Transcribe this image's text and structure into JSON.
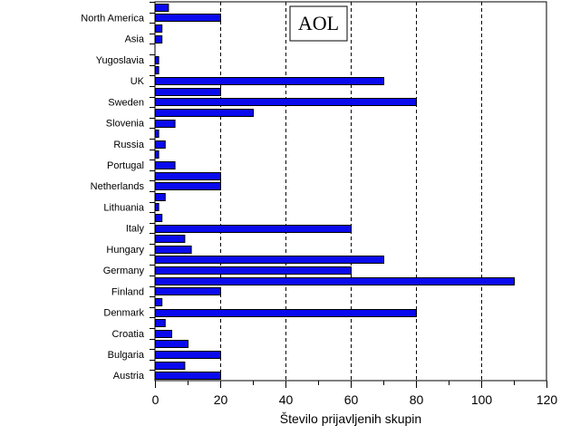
{
  "chart_data": {
    "type": "bar",
    "orientation": "horizontal",
    "title": "AOL",
    "xlabel": "Število prijavljenih skupin",
    "ylabel": "",
    "xlim": [
      0,
      120
    ],
    "xticks": [
      0,
      20,
      40,
      60,
      80,
      100,
      120
    ],
    "grid": "vertical dashed at major ticks",
    "bar_color": "#0a0aee",
    "categories": [
      "Austria",
      "",
      "Bulgaria",
      "",
      "Croatia",
      "",
      "Denmark",
      "",
      "Finland",
      "",
      "Germany",
      "",
      "Hungary",
      "",
      "Italy",
      "",
      "Lithuania",
      "",
      "Netherlands",
      "",
      "Portugal",
      "",
      "Russia",
      "",
      "Slovenia",
      "",
      "Sweden",
      "",
      "UK",
      "",
      "Yugoslavia",
      "",
      "Asia",
      "",
      "North America",
      ""
    ],
    "values": [
      20,
      9,
      20,
      10,
      5,
      3,
      80,
      2,
      20,
      110,
      60,
      70,
      11,
      9,
      60,
      2,
      1,
      3,
      20,
      20,
      6,
      1,
      3,
      1,
      6,
      30,
      80,
      20,
      70,
      1,
      1,
      0,
      2,
      2,
      20,
      4
    ]
  }
}
